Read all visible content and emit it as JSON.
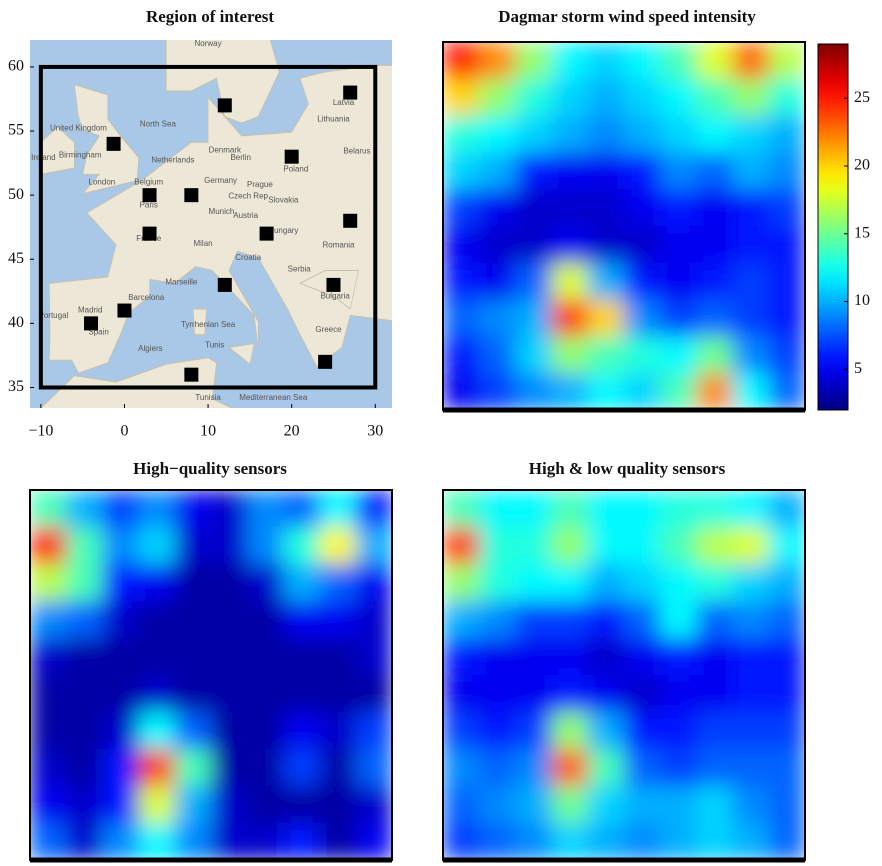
{
  "chart_data": [
    {
      "type": "scatter",
      "title": "Region of interest",
      "x": [
        -1.3,
        12,
        27,
        20,
        3,
        8,
        27,
        3,
        17,
        12,
        25,
        0,
        -4,
        8,
        24
      ],
      "y": [
        54,
        57,
        58,
        53,
        50,
        50,
        48,
        47,
        47,
        43,
        43,
        41,
        40,
        36,
        37
      ],
      "color": "#000000",
      "xlim": [
        -11.3,
        32
      ],
      "ylim": [
        33.4,
        62.1
      ],
      "xticks": [
        {
          "value": -10,
          "label": "−10"
        },
        0,
        10,
        20,
        30
      ],
      "yticks": [
        35,
        40,
        45,
        50,
        55,
        60
      ],
      "region": {
        "x": [
          -10,
          30
        ],
        "y": [
          35,
          60
        ]
      },
      "map_labels": [
        {
          "text": "Norway",
          "lon": 10,
          "lat": 61.8
        },
        {
          "text": "North Sea",
          "lon": 4,
          "lat": 55.5
        },
        {
          "text": "Denmark",
          "lon": 12,
          "lat": 53.5
        },
        {
          "text": "United Kingdom",
          "lon": -5.5,
          "lat": 55.2
        },
        {
          "text": "Ireland",
          "lon": -9.7,
          "lat": 52.9
        },
        {
          "text": "Netherlands",
          "lon": 5.8,
          "lat": 52.7
        },
        {
          "text": "Germany",
          "lon": 11.5,
          "lat": 51.1
        },
        {
          "text": "Poland",
          "lon": 20.5,
          "lat": 52
        },
        {
          "text": "Lithuania",
          "lon": 25,
          "lat": 55.9
        },
        {
          "text": "Latvia",
          "lon": 26.2,
          "lat": 57.2
        },
        {
          "text": "Belarus",
          "lon": 27.8,
          "lat": 53.4
        },
        {
          "text": "Belgium",
          "lon": 2.9,
          "lat": 51
        },
        {
          "text": "Czech Rep",
          "lon": 14.8,
          "lat": 49.9
        },
        {
          "text": "Slovakia",
          "lon": 19,
          "lat": 49.6
        },
        {
          "text": "France",
          "lon": 2.9,
          "lat": 46.6
        },
        {
          "text": "Austria",
          "lon": 14.5,
          "lat": 48.4
        },
        {
          "text": "Hungary",
          "lon": 19,
          "lat": 47.2
        },
        {
          "text": "Romania",
          "lon": 25.6,
          "lat": 46.1
        },
        {
          "text": "Croatia",
          "lon": 14.8,
          "lat": 45.1
        },
        {
          "text": "Serbia",
          "lon": 20.9,
          "lat": 44.2
        },
        {
          "text": "Bulgaria",
          "lon": 25.2,
          "lat": 42.1
        },
        {
          "text": "Spain",
          "lon": -3.1,
          "lat": 39.3
        },
        {
          "text": "Portugal",
          "lon": -8.5,
          "lat": 40.6
        },
        {
          "text": "Madrid",
          "lon": -4.1,
          "lat": 41
        },
        {
          "text": "Barcelona",
          "lon": 2.6,
          "lat": 42
        },
        {
          "text": "Greece",
          "lon": 24.4,
          "lat": 39.5
        },
        {
          "text": "Tunisia",
          "lon": 10,
          "lat": 34.2
        },
        {
          "text": "Algiers",
          "lon": 3.1,
          "lat": 38
        },
        {
          "text": "Tunis",
          "lon": 10.8,
          "lat": 38.3
        },
        {
          "text": "Tyrrhenian Sea",
          "lon": 10,
          "lat": 39.9
        },
        {
          "text": "Mediterranean Sea",
          "lon": 17.8,
          "lat": 34.2
        },
        {
          "text": "London",
          "lon": -2.7,
          "lat": 51
        },
        {
          "text": "Paris",
          "lon": 2.9,
          "lat": 49.2
        },
        {
          "text": "Berlin",
          "lon": 13.9,
          "lat": 52.9
        },
        {
          "text": "Munich",
          "lon": 11.6,
          "lat": 48.7
        },
        {
          "text": "Milan",
          "lon": 9.4,
          "lat": 46.2
        },
        {
          "text": "Marseille",
          "lon": 6.8,
          "lat": 43.2
        },
        {
          "text": "Prague",
          "lon": 16.2,
          "lat": 50.8
        },
        {
          "text": "Birmingham",
          "lon": -5.3,
          "lat": 53.1
        }
      ]
    },
    {
      "type": "heatmap",
      "title": "Dagmar storm wind speed intensity",
      "colormap": "jet",
      "zlim": [
        2,
        29
      ],
      "colorbar_ticks": [
        5,
        10,
        15,
        20,
        25
      ],
      "values": [
        [
          25,
          22,
          16,
          12,
          11,
          12,
          14,
          18,
          23,
          17
        ],
        [
          20,
          16,
          13,
          11,
          10,
          11,
          12,
          14,
          16,
          13
        ],
        [
          13,
          12,
          11,
          10,
          9,
          10,
          11,
          12,
          11,
          10
        ],
        [
          11,
          10,
          6,
          5,
          5,
          6,
          9,
          8,
          10,
          9
        ],
        [
          7,
          5,
          4,
          4,
          4,
          5,
          6,
          5,
          6,
          7
        ],
        [
          5,
          4,
          4,
          5,
          4,
          4,
          5,
          5,
          6,
          6
        ],
        [
          6,
          5,
          8,
          18,
          10,
          6,
          5,
          6,
          7,
          6
        ],
        [
          8,
          9,
          10,
          24,
          20,
          9,
          7,
          8,
          7,
          6
        ],
        [
          6,
          8,
          11,
          16,
          14,
          13,
          12,
          15,
          9,
          7
        ],
        [
          5,
          7,
          9,
          10,
          12,
          11,
          14,
          22,
          12,
          8
        ]
      ]
    },
    {
      "type": "heatmap",
      "title": "High−quality sensors",
      "colormap": "jet",
      "zlim": [
        2,
        29
      ],
      "values": [
        [
          14,
          10,
          7,
          9,
          5,
          4,
          9,
          8,
          12,
          6
        ],
        [
          25,
          14,
          9,
          11,
          4,
          4,
          9,
          13,
          19,
          10
        ],
        [
          17,
          14,
          6,
          5,
          3,
          3,
          4,
          10,
          8,
          5
        ],
        [
          9,
          8,
          4,
          3,
          3,
          3,
          3,
          5,
          5,
          4
        ],
        [
          4,
          3,
          3,
          3,
          3,
          3,
          3,
          3,
          3,
          4
        ],
        [
          3,
          3,
          3,
          4,
          3,
          3,
          3,
          3,
          3,
          3
        ],
        [
          3,
          3,
          4,
          12,
          8,
          3,
          3,
          5,
          4,
          7
        ],
        [
          4,
          3,
          6,
          24,
          14,
          3,
          3,
          7,
          3,
          8
        ],
        [
          5,
          4,
          6,
          18,
          10,
          4,
          3,
          3,
          3,
          4
        ],
        [
          8,
          4,
          9,
          12,
          9,
          4,
          4,
          6,
          3,
          5
        ]
      ]
    },
    {
      "type": "heatmap",
      "title": "High & low quality sensors",
      "colormap": "jet",
      "zlim": [
        2,
        29
      ],
      "values": [
        [
          14,
          12,
          12,
          14,
          12,
          12,
          13,
          13,
          12,
          10
        ],
        [
          24,
          13,
          13,
          16,
          12,
          12,
          14,
          17,
          18,
          12
        ],
        [
          16,
          13,
          12,
          12,
          10,
          11,
          12,
          13,
          11,
          10
        ],
        [
          10,
          9,
          7,
          7,
          6,
          8,
          12,
          8,
          9,
          8
        ],
        [
          6,
          5,
          5,
          5,
          4,
          5,
          6,
          5,
          6,
          6
        ],
        [
          5,
          5,
          5,
          6,
          5,
          4,
          5,
          5,
          6,
          6
        ],
        [
          7,
          6,
          7,
          16,
          10,
          6,
          6,
          7,
          7,
          7
        ],
        [
          9,
          8,
          9,
          23,
          14,
          8,
          7,
          8,
          8,
          8
        ],
        [
          8,
          9,
          10,
          15,
          11,
          10,
          10,
          11,
          9,
          8
        ],
        [
          7,
          8,
          9,
          11,
          10,
          9,
          10,
          11,
          10,
          8
        ]
      ]
    }
  ]
}
